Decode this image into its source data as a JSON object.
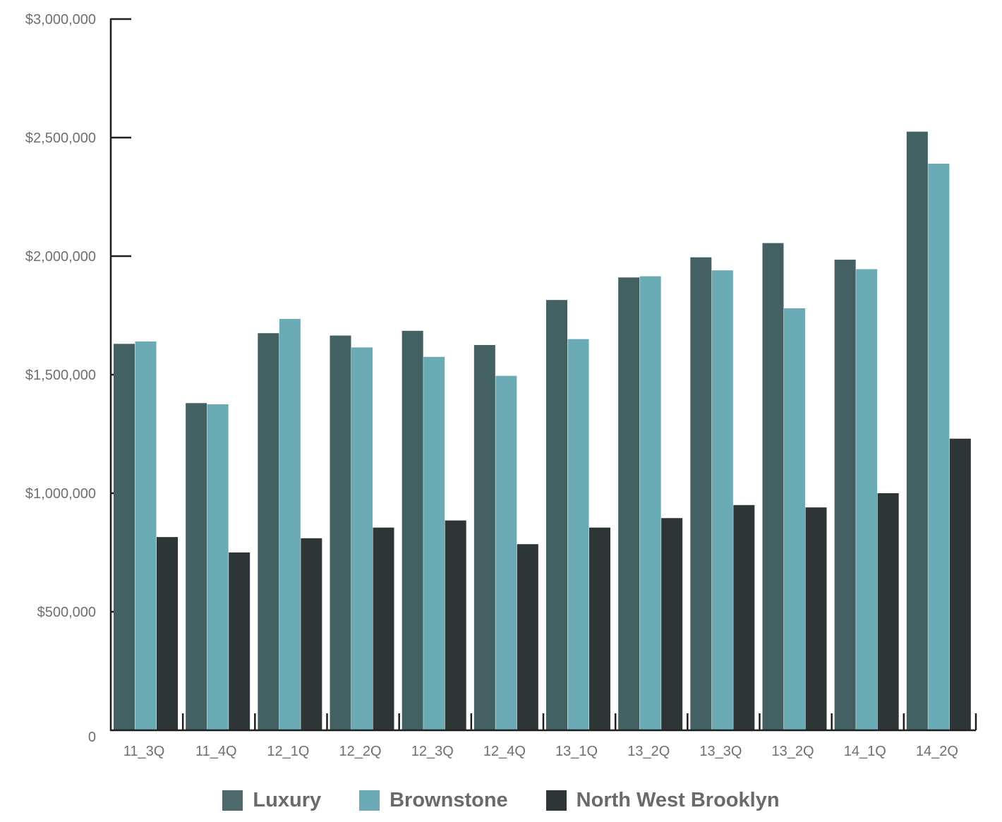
{
  "chart_data": {
    "type": "bar",
    "title": "",
    "xlabel": "",
    "ylabel": "",
    "ylim": [
      0,
      3000000
    ],
    "yticks": [
      {
        "value": 0,
        "label": "0"
      },
      {
        "value": 500000,
        "label": "$500,000"
      },
      {
        "value": 1000000,
        "label": "$1,000,000"
      },
      {
        "value": 1500000,
        "label": "$1,500,000"
      },
      {
        "value": 2000000,
        "label": "$2,000,000"
      },
      {
        "value": 2500000,
        "label": "$2,500,000"
      },
      {
        "value": 3000000,
        "label": "$3,000,000"
      }
    ],
    "categories": [
      "11_3Q",
      "11_4Q",
      "12_1Q",
      "12_2Q",
      "12_3Q",
      "12_4Q",
      "13_1Q",
      "13_2Q",
      "13_3Q",
      "13_2Q",
      "14_1Q",
      "14_2Q"
    ],
    "series": [
      {
        "name": "Luxury",
        "color": "#436063",
        "values": [
          1630000,
          1380000,
          1675000,
          1665000,
          1685000,
          1625000,
          1815000,
          1910000,
          1995000,
          2055000,
          1985000,
          2525000
        ]
      },
      {
        "name": "Brownstone",
        "color": "#6aabb5",
        "values": [
          1640000,
          1375000,
          1735000,
          1615000,
          1575000,
          1495000,
          1650000,
          1915000,
          1940000,
          1780000,
          1945000,
          2390000
        ]
      },
      {
        "name": "North West Brooklyn",
        "color": "#2e3536",
        "values": [
          815000,
          750000,
          810000,
          855000,
          885000,
          785000,
          855000,
          895000,
          950000,
          940000,
          1000000,
          1230000
        ]
      }
    ],
    "grid": false,
    "legend_position": "bottom-center"
  }
}
